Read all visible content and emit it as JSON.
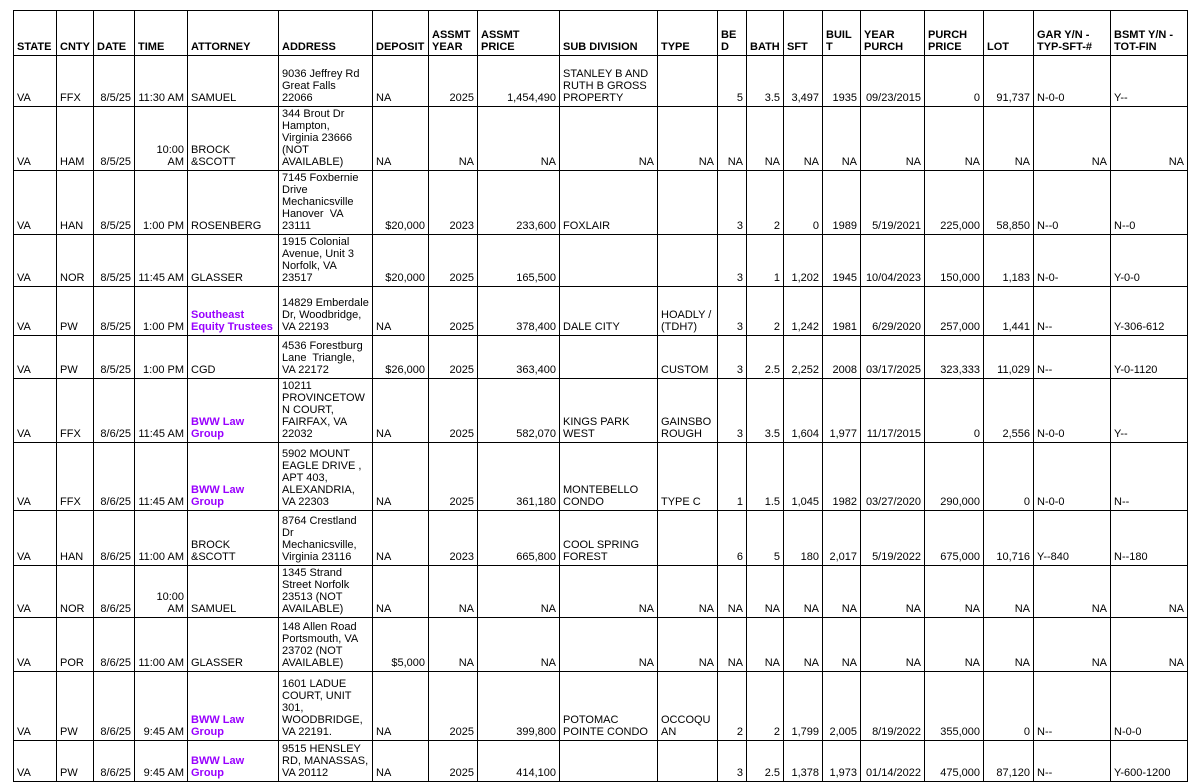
{
  "table": {
    "link_color": "#9900ff",
    "columns": [
      {
        "id": "state",
        "label": "STATE"
      },
      {
        "id": "cnty",
        "label": "CNTY"
      },
      {
        "id": "date",
        "label": "DATE"
      },
      {
        "id": "time",
        "label": "TIME"
      },
      {
        "id": "attorney",
        "label": "ATTORNEY"
      },
      {
        "id": "address",
        "label": "ADDRESS"
      },
      {
        "id": "deposit",
        "label": "DEPOSIT"
      },
      {
        "id": "assmt_year",
        "label": "ASSMT YEAR"
      },
      {
        "id": "assmt_price",
        "label": "ASSMT PRICE"
      },
      {
        "id": "sub_division",
        "label": "SUB DIVISION"
      },
      {
        "id": "type",
        "label": "TYPE"
      },
      {
        "id": "bed",
        "label": "BED"
      },
      {
        "id": "bath",
        "label": "BATH"
      },
      {
        "id": "sft",
        "label": "SFT"
      },
      {
        "id": "built",
        "label": "BUILT"
      },
      {
        "id": "year_purch",
        "label": "YEAR PURCH"
      },
      {
        "id": "purch_price",
        "label": "PURCH PRICE"
      },
      {
        "id": "lot",
        "label": "LOT"
      },
      {
        "id": "gar",
        "label": "GAR Y/N - TYP-SFT-#"
      },
      {
        "id": "bsmt",
        "label": "BSMT Y/N - TOT-FIN"
      }
    ],
    "rows": [
      {
        "state": "VA",
        "cnty": "FFX",
        "date": "8/5/25",
        "time": "11:30 AM",
        "attorney": "SAMUEL",
        "attorney_is_link": false,
        "address": "9036 Jeffrey Rd Great Falls 22066",
        "deposit": "NA",
        "assmt_year": "2025",
        "assmt_price": "1,454,490",
        "sub_division": "STANLEY B AND RUTH B GROSS PROPERTY",
        "type": "",
        "bed": "5",
        "bath": "3.5",
        "sft": "3,497",
        "built": "1935",
        "year_purch": "09/23/2015",
        "purch_price": "0",
        "lot": "91,737",
        "gar": "N-0-0",
        "bsmt": "Y--"
      },
      {
        "state": "VA",
        "cnty": "HAM",
        "date": "8/5/25",
        "time": "10:00 AM",
        "attorney": "BROCK &SCOTT",
        "attorney_is_link": false,
        "address": "344 Brout Dr Hampton, Virginia 23666 (NOT AVAILABLE)",
        "deposit": "NA",
        "assmt_year": "NA",
        "assmt_price": "NA",
        "sub_division": "NA",
        "type": "NA",
        "bed": "NA",
        "bath": "NA",
        "sft": "NA",
        "built": "NA",
        "year_purch": "NA",
        "purch_price": "NA",
        "lot": "NA",
        "gar": "NA",
        "bsmt": "NA"
      },
      {
        "state": "VA",
        "cnty": "HAN",
        "date": "8/5/25",
        "time": "1:00 PM",
        "attorney": "ROSENBERG",
        "attorney_is_link": false,
        "address": "7145 Foxbernie Drive Mechanicsville Hanover  VA 23111",
        "deposit": "$20,000",
        "assmt_year": "2023",
        "assmt_price": "233,600",
        "sub_division": "FOXLAIR",
        "type": "",
        "bed": "3",
        "bath": "2",
        "sft": "0",
        "built": "1989",
        "year_purch": "5/19/2021",
        "purch_price": "225,000",
        "lot": "58,850",
        "gar": "N--0",
        "bsmt": "N--0"
      },
      {
        "state": "VA",
        "cnty": "NOR",
        "date": "8/5/25",
        "time": "11:45 AM",
        "attorney": "GLASSER",
        "attorney_is_link": false,
        "address": "1915 Colonial Avenue, Unit 3 Norfolk, VA 23517",
        "deposit": "$20,000",
        "assmt_year": "2025",
        "assmt_price": "165,500",
        "sub_division": "",
        "type": "",
        "bed": "3",
        "bath": "1",
        "sft": "1,202",
        "built": "1945",
        "year_purch": "10/04/2023",
        "purch_price": "150,000",
        "lot": "1,183",
        "gar": "N-0-",
        "bsmt": "Y-0-0"
      },
      {
        "state": "VA",
        "cnty": "PW",
        "date": "8/5/25",
        "time": "1:00 PM",
        "attorney": "Southeast Equity Trustees",
        "attorney_is_link": true,
        "address": "14829 Emberdale Dr, Woodbridge, VA 22193",
        "deposit": "NA",
        "assmt_year": "2025",
        "assmt_price": "378,400",
        "sub_division": "DALE CITY",
        "type": "HOADLY / (TDH7)",
        "bed": "3",
        "bath": "2",
        "sft": "1,242",
        "built": "1981",
        "year_purch": "6/29/2020",
        "purch_price": "257,000",
        "lot": "1,441",
        "gar": "N--",
        "bsmt": "Y-306-612"
      },
      {
        "state": "VA",
        "cnty": "PW",
        "date": "8/5/25",
        "time": "1:00 PM",
        "attorney": "CGD",
        "attorney_is_link": false,
        "address": "4536 Forestburg Lane  Triangle, VA 22172",
        "deposit": "$26,000",
        "assmt_year": "2025",
        "assmt_price": "363,400",
        "sub_division": "",
        "type": "CUSTOM",
        "bed": "3",
        "bath": "2.5",
        "sft": "2,252",
        "built": "2008",
        "year_purch": "03/17/2025",
        "purch_price": "323,333",
        "lot": "11,029",
        "gar": "N--",
        "bsmt": "Y-0-1120"
      },
      {
        "state": "VA",
        "cnty": "FFX",
        "date": "8/6/25",
        "time": "11:45 AM",
        "attorney": "BWW Law Group",
        "attorney_is_link": true,
        "address": "10211 PROVINCETOWN COURT, FAIRFAX, VA 22032",
        "deposit": "NA",
        "assmt_year": "2025",
        "assmt_price": "582,070",
        "sub_division": "KINGS PARK WEST",
        "type": "GAINSBOROUGH",
        "bed": "3",
        "bath": "3.5",
        "sft": "1,604",
        "built": "1,977",
        "year_purch": "11/17/2015",
        "purch_price": "0",
        "lot": "2,556",
        "gar": "N-0-0",
        "bsmt": "Y--"
      },
      {
        "state": "VA",
        "cnty": "FFX",
        "date": "8/6/25",
        "time": "11:45 AM",
        "attorney": "BWW Law Group",
        "attorney_is_link": true,
        "address": "5902 MOUNT EAGLE DRIVE , APT 403, ALEXANDRIA, VA 22303",
        "deposit": "NA",
        "assmt_year": "2025",
        "assmt_price": "361,180",
        "sub_division": "MONTEBELLO CONDO",
        "type": "TYPE C",
        "bed": "1",
        "bath": "1.5",
        "sft": "1,045",
        "built": "1982",
        "year_purch": "03/27/2020",
        "purch_price": "290,000",
        "lot": "0",
        "gar": "N-0-0",
        "bsmt": "N--"
      },
      {
        "state": "VA",
        "cnty": "HAN",
        "date": "8/6/25",
        "time": "11:00 AM",
        "attorney": "BROCK &SCOTT",
        "attorney_is_link": false,
        "address": "8764 Crestland Dr Mechanicsville, Virginia 23116",
        "deposit": "NA",
        "assmt_year": "2023",
        "assmt_price": "665,800",
        "sub_division": "COOL SPRING FOREST",
        "type": "",
        "bed": "6",
        "bath": "5",
        "sft": "180",
        "built": "2,017",
        "year_purch": "5/19/2022",
        "purch_price": "675,000",
        "lot": "10,716",
        "gar": "Y--840",
        "bsmt": "N--180"
      },
      {
        "state": "VA",
        "cnty": "NOR",
        "date": "8/6/25",
        "time": "10:00 AM",
        "attorney": "SAMUEL",
        "attorney_is_link": false,
        "address": "1345 Strand Street Norfolk 23513 (NOT AVAILABLE)",
        "deposit": "NA",
        "assmt_year": "NA",
        "assmt_price": "NA",
        "sub_division": "NA",
        "type": "NA",
        "bed": "NA",
        "bath": "NA",
        "sft": "NA",
        "built": "NA",
        "year_purch": "NA",
        "purch_price": "NA",
        "lot": "NA",
        "gar": "NA",
        "bsmt": "NA"
      },
      {
        "state": "VA",
        "cnty": "POR",
        "date": "8/6/25",
        "time": "11:00 AM",
        "attorney": "GLASSER",
        "attorney_is_link": false,
        "address": "148 Allen Road Portsmouth, VA 23702 (NOT AVAILABLE)",
        "deposit": "$5,000",
        "assmt_year": "NA",
        "assmt_price": "NA",
        "sub_division": "NA",
        "type": "NA",
        "bed": "NA",
        "bath": "NA",
        "sft": "NA",
        "built": "NA",
        "year_purch": "NA",
        "purch_price": "NA",
        "lot": "NA",
        "gar": "NA",
        "bsmt": "NA"
      },
      {
        "state": "VA",
        "cnty": "PW",
        "date": "8/6/25",
        "time": "9:45 AM",
        "attorney": "BWW Law Group",
        "attorney_is_link": true,
        "address": "1601 LADUE COURT, UNIT 301, WOODBRIDGE, VA 22191.",
        "deposit": "NA",
        "assmt_year": "2025",
        "assmt_price": "399,800",
        "sub_division": "POTOMAC POINTE CONDO",
        "type": "OCCOQUAN",
        "bed": "2",
        "bath": "2",
        "sft": "1,799",
        "built": "2,005",
        "year_purch": "8/19/2022",
        "purch_price": "355,000",
        "lot": "0",
        "gar": "N--",
        "bsmt": "N-0-0"
      },
      {
        "state": "VA",
        "cnty": "PW",
        "date": "8/6/25",
        "time": "9:45 AM",
        "attorney": "BWW Law Group",
        "attorney_is_link": true,
        "address": "9515 HENSLEY RD, MANASSAS, VA 20112",
        "deposit": "NA",
        "assmt_year": "2025",
        "assmt_price": "414,100",
        "sub_division": "",
        "type": "",
        "bed": "3",
        "bath": "2.5",
        "sft": "1,378",
        "built": "1,973",
        "year_purch": "01/14/2022",
        "purch_price": "475,000",
        "lot": "87,120",
        "gar": "N--",
        "bsmt": "Y-600-1200"
      }
    ]
  }
}
